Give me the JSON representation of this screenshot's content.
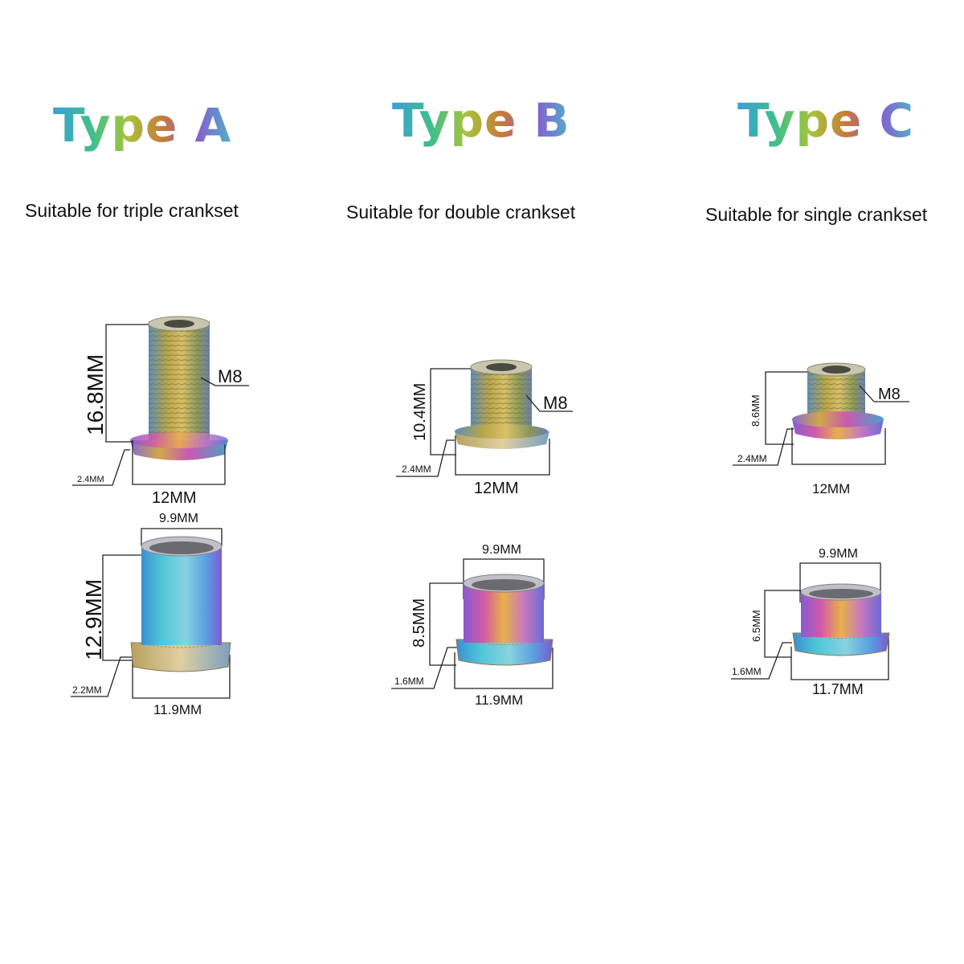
{
  "columns": [
    {
      "title": "Type A",
      "subtitle": "Suitable for triple crankset",
      "bolt": {
        "height_label": "16.8MM",
        "thread_label": "M8",
        "flange_label": "2.4MM",
        "diameter_label": "12MM"
      },
      "nut": {
        "top_label": "9.9MM",
        "height_label": "12.9MM",
        "flange_label": "2.2MM",
        "diameter_label": "11.9MM"
      }
    },
    {
      "title": "Type B",
      "subtitle": "Suitable for double crankset",
      "bolt": {
        "height_label": "10.4MM",
        "thread_label": "M8",
        "flange_label": "2.4MM",
        "diameter_label": "12MM"
      },
      "nut": {
        "top_label": "9.9MM",
        "height_label": "8.5MM",
        "flange_label": "1.6MM",
        "diameter_label": "11.9MM"
      }
    },
    {
      "title": "Type C",
      "subtitle": "Suitable for single crankset",
      "bolt": {
        "height_label": "8.6MM",
        "thread_label": "M8",
        "flange_label": "2.4MM",
        "diameter_label": "12MM"
      },
      "nut": {
        "top_label": "9.9MM",
        "height_label": "6.5MM",
        "flange_label": "1.6MM",
        "diameter_label": "11.7MM"
      }
    }
  ],
  "colors": {
    "line": "#222222",
    "metal_gradient": [
      "#3aa0d8",
      "#6ac48a",
      "#c8b04a",
      "#c06aa8",
      "#7a5ad0"
    ]
  }
}
